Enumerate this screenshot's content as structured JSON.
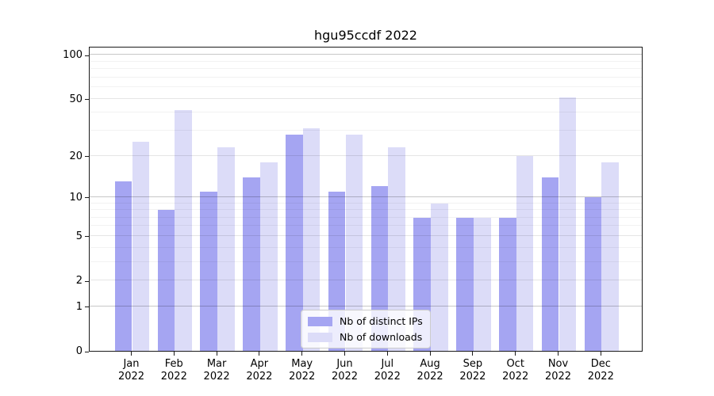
{
  "title": "hgu95ccdf 2022",
  "chart_data": {
    "type": "bar",
    "title": "hgu95ccdf 2022",
    "year_label": "2022",
    "categories": [
      "Jan",
      "Feb",
      "Mar",
      "Apr",
      "May",
      "Jun",
      "Jul",
      "Aug",
      "Sep",
      "Oct",
      "Nov",
      "Dec"
    ],
    "series": [
      {
        "name": "Nb of distinct IPs",
        "color": "#a5a5f2",
        "values": [
          13,
          8,
          11,
          14,
          28,
          11,
          12,
          7,
          7,
          7,
          14,
          10
        ]
      },
      {
        "name": "Nb of downloads",
        "color": "#dcdcf8",
        "values": [
          25,
          42,
          23,
          18,
          31,
          28,
          23,
          9,
          7,
          20,
          51,
          18
        ]
      }
    ],
    "yscale": "log1p",
    "yticks": [
      0,
      1,
      2,
      5,
      10,
      20,
      50,
      100
    ],
    "ylim": [
      0,
      117
    ],
    "xlabel": "",
    "ylabel": "",
    "grid": "horizontal",
    "legend_position": "inside-bottom-center"
  }
}
